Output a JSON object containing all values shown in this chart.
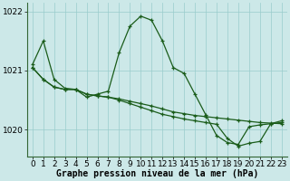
{
  "xlabel": "Graphe pression niveau de la mer (hPa)",
  "bg_color": "#cce8e8",
  "grid_color": "#99cccc",
  "line_color": "#1a5c1a",
  "line1": [
    1021.1,
    1021.5,
    1020.85,
    1020.7,
    1020.68,
    1020.55,
    1020.6,
    1020.65,
    1021.3,
    1021.75,
    1021.92,
    1021.85,
    1021.5,
    1021.05,
    1020.95,
    1020.6,
    1020.25,
    1019.9,
    1019.78,
    1019.75,
    1020.05,
    1020.08,
    1020.1,
    1020.15
  ],
  "line2": [
    1021.05,
    1020.85,
    1020.72,
    1020.68,
    1020.68,
    1020.6,
    1020.57,
    1020.55,
    1020.52,
    1020.48,
    1020.44,
    1020.4,
    1020.35,
    1020.3,
    1020.27,
    1020.24,
    1020.22,
    1020.2,
    1020.18,
    1020.16,
    1020.14,
    1020.12,
    1020.11,
    1020.1
  ],
  "line3": [
    1021.05,
    1020.85,
    1020.72,
    1020.68,
    1020.68,
    1020.6,
    1020.57,
    1020.55,
    1020.5,
    1020.44,
    1020.38,
    1020.32,
    1020.26,
    1020.22,
    1020.18,
    1020.15,
    1020.12,
    1020.09,
    1019.85,
    1019.72,
    1019.77,
    1019.8,
    1020.1,
    1020.12
  ],
  "ylim_min": 1019.55,
  "ylim_max": 1022.15,
  "yticks": [
    1020,
    1021,
    1022
  ],
  "xticks": [
    0,
    1,
    2,
    3,
    4,
    5,
    6,
    7,
    8,
    9,
    10,
    11,
    12,
    13,
    14,
    15,
    16,
    17,
    18,
    19,
    20,
    21,
    22,
    23
  ],
  "xlabel_fontsize": 7,
  "tick_fontsize": 6.5
}
